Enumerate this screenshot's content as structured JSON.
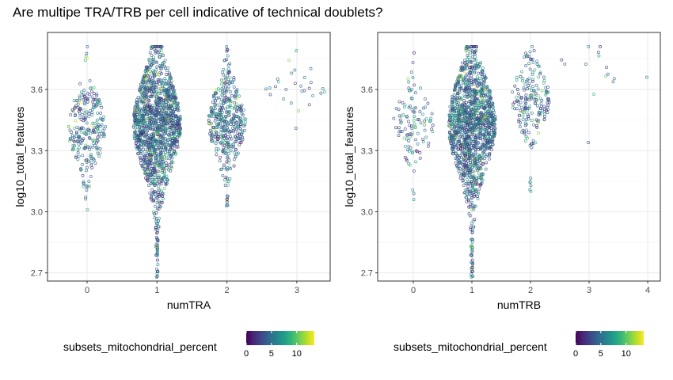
{
  "title": "Are multipe TRA/TRB per cell indicative of technical doublets?",
  "colors": {
    "viridis": [
      "#440154",
      "#482878",
      "#3e4989",
      "#31688e",
      "#26828e",
      "#1f9e89",
      "#35b779",
      "#6ece58",
      "#b5de2b",
      "#fde725"
    ],
    "grid_major": "#ebebeb",
    "grid_minor": "#f3f3f3",
    "panel_border": "#333333"
  },
  "chart_data": [
    {
      "type": "scatter",
      "style": "beeswarm",
      "xlabel": "numTRA",
      "ylabel": "log10_total_features",
      "categories": [
        "0",
        "1",
        "2",
        "3"
      ],
      "yticks": [
        "2.7",
        "3.0",
        "3.3",
        "3.6"
      ],
      "ylim": [
        2.66,
        3.88
      ],
      "grid": true,
      "legend_position": "bottom",
      "color_variable": "subsets_mitochondrial_percent",
      "legend_ticks": [
        "0",
        "5",
        "10"
      ],
      "color_range": [
        0,
        13.5
      ],
      "groups": [
        {
          "x": "0",
          "y_min": 3.01,
          "y_max": 3.81,
          "median": 3.41,
          "relative_count": 0.18
        },
        {
          "x": "1",
          "y_min": 2.68,
          "y_max": 3.81,
          "median": 3.43,
          "relative_count": 1.0
        },
        {
          "x": "2",
          "y_min": 3.03,
          "y_max": 3.81,
          "median": 3.44,
          "relative_count": 0.3
        },
        {
          "x": "3",
          "y_min": 3.41,
          "y_max": 3.79,
          "median": 3.62,
          "relative_count": 0.02
        }
      ]
    },
    {
      "type": "scatter",
      "style": "beeswarm",
      "xlabel": "numTRB",
      "ylabel": "log10_total_features",
      "categories": [
        "0",
        "1",
        "2",
        "3",
        "4"
      ],
      "yticks": [
        "2.7",
        "3.0",
        "3.3",
        "3.6"
      ],
      "ylim": [
        2.66,
        3.88
      ],
      "grid": true,
      "legend_position": "bottom",
      "color_variable": "subsets_mitochondrial_percent",
      "legend_ticks": [
        "0",
        "5",
        "10"
      ],
      "color_range": [
        0,
        13.5
      ],
      "groups": [
        {
          "x": "0",
          "y_min": 3.06,
          "y_max": 3.78,
          "median": 3.42,
          "relative_count": 0.08
        },
        {
          "x": "1",
          "y_min": 2.68,
          "y_max": 3.81,
          "median": 3.43,
          "relative_count": 1.0
        },
        {
          "x": "2",
          "y_min": 3.1,
          "y_max": 3.81,
          "median": 3.55,
          "relative_count": 0.14
        },
        {
          "x": "3",
          "y_min": 3.34,
          "y_max": 3.81,
          "median": 3.7,
          "relative_count": 0.01
        },
        {
          "x": "4",
          "y_min": 3.66,
          "y_max": 3.66,
          "median": 3.66,
          "relative_count": 0.001
        }
      ]
    }
  ]
}
